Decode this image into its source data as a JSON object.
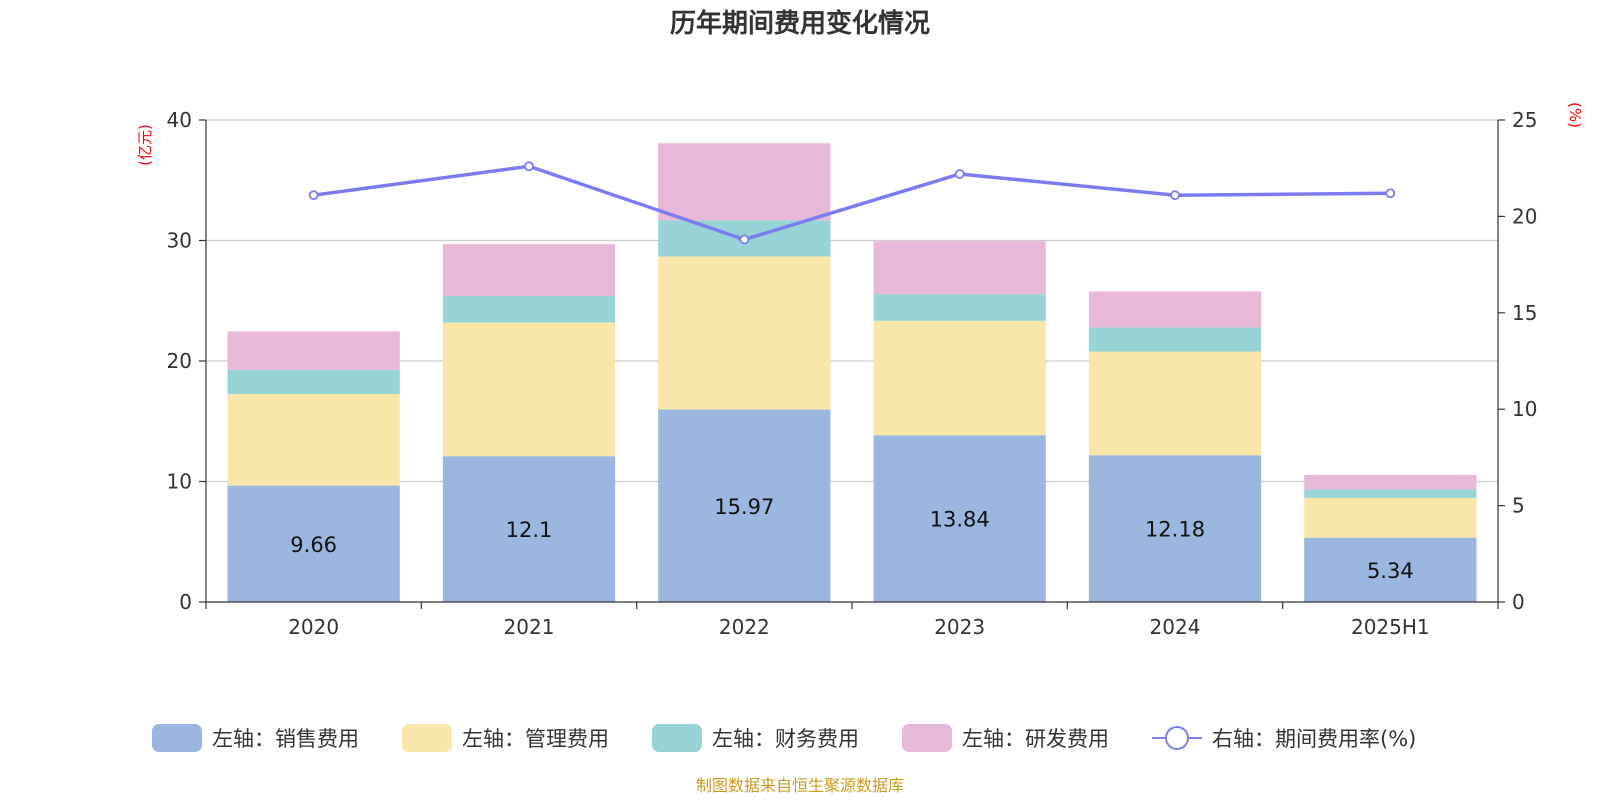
{
  "chart_data": {
    "type": "bar",
    "title": "历年期间费用变化情况",
    "categories": [
      "2020",
      "2021",
      "2022",
      "2023",
      "2024",
      "2025H1"
    ],
    "left_axis": {
      "unit_label": "(亿元)",
      "ylim": [
        0,
        40
      ],
      "ticks": [
        "0",
        "10",
        "20",
        "30",
        "40"
      ]
    },
    "right_axis": {
      "unit_label": "(%)",
      "ylim": [
        0,
        25
      ],
      "ticks": [
        "0",
        "5",
        "10",
        "15",
        "20",
        "25"
      ]
    },
    "grid": true,
    "series": [
      {
        "name": "左轴：销售费用",
        "type": "bar",
        "axis": "left",
        "color": "#9bb7e0",
        "values": [
          9.66,
          12.1,
          15.97,
          13.84,
          12.18,
          5.34
        ],
        "labels": [
          "9.66",
          "12.1",
          "15.97",
          "13.84",
          "12.18",
          "5.34"
        ]
      },
      {
        "name": "左轴：管理费用",
        "type": "bar",
        "axis": "left",
        "color": "#f8e7a8",
        "values": [
          7.6,
          11.1,
          12.7,
          9.5,
          8.6,
          3.3
        ]
      },
      {
        "name": "左轴：财务费用",
        "type": "bar",
        "axis": "left",
        "color": "#98d4d5",
        "values": [
          2.0,
          2.2,
          3.0,
          2.2,
          2.0,
          0.7
        ]
      },
      {
        "name": "左轴：研发费用",
        "type": "bar",
        "axis": "left",
        "color": "#e8b8d8",
        "values": [
          3.2,
          4.3,
          6.4,
          4.4,
          3.0,
          1.2
        ]
      },
      {
        "name": "右轴：期间费用率(%)",
        "type": "line",
        "axis": "right",
        "color": "#7b7cf0",
        "values": [
          21.1,
          22.6,
          18.8,
          22.2,
          21.1,
          21.2
        ]
      }
    ],
    "legend_position": "bottom",
    "source": "制图数据来自恒生聚源数据库"
  }
}
